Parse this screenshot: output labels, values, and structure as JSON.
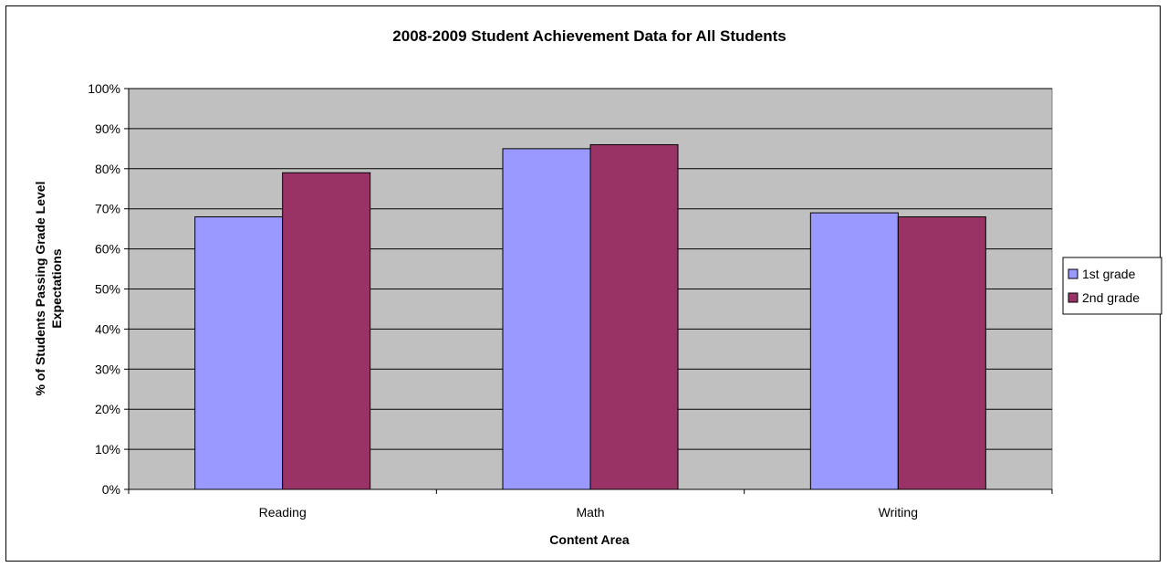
{
  "chart_data": {
    "type": "bar",
    "title": "2008-2009  Student Achievement Data for All Students",
    "xlabel": "Content Area",
    "ylabel_lines": [
      "% of Students Passing Grade Level",
      "Expectations"
    ],
    "categories": [
      "Reading",
      "Math",
      "Writing"
    ],
    "series": [
      {
        "name": "1st grade",
        "color": "#9999ff",
        "values": [
          68,
          85,
          69
        ]
      },
      {
        "name": "2nd grade",
        "color": "#993366",
        "values": [
          79,
          86,
          68
        ]
      }
    ],
    "ylim": [
      0,
      100
    ],
    "yticks": [
      "0%",
      "10%",
      "20%",
      "30%",
      "40%",
      "50%",
      "60%",
      "70%",
      "80%",
      "90%",
      "100%"
    ],
    "plot_background": "#c0c0c0",
    "grid": true,
    "legend_position": "right"
  }
}
